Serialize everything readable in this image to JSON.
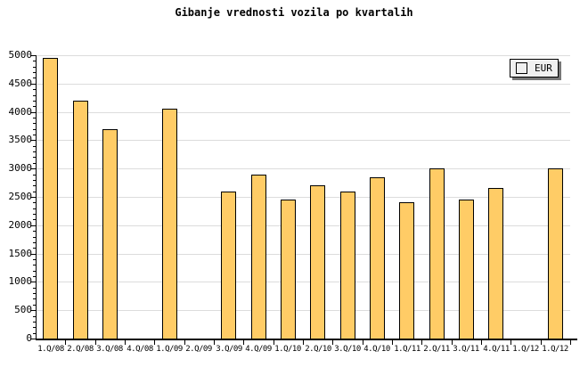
{
  "title": "Gibanje vrednosti vozila po kvartalih",
  "legend": {
    "label": "EUR"
  },
  "colors": {
    "bar_fill": "#FFCC66",
    "bar_border": "#000000",
    "gridline": "#DCDCDC",
    "axis": "#000000",
    "legend_bg": "#F0F0F0",
    "legend_shadow": "#777777",
    "background": "#FFFFFF",
    "text": "#000000"
  },
  "chart_data": {
    "type": "bar",
    "title": "Gibanje vrednosti vozila po kvartalih",
    "categories": [
      "1.Q/08",
      "2.Q/08",
      "3.Q/08",
      "4.Q/08",
      "1.Q/09",
      "2.Q/09",
      "3.Q/09",
      "4.Q/09",
      "1.Q/10",
      "2.Q/10",
      "3.Q/10",
      "4.Q/10",
      "1.Q/11",
      "2.Q/11",
      "3.Q/11",
      "4.Q/11",
      "1.Q/12",
      "1.Q/12"
    ],
    "series": [
      {
        "name": "EUR",
        "values": [
          4950,
          4200,
          3700,
          0,
          4050,
          0,
          2600,
          2900,
          2450,
          2700,
          2600,
          2850,
          2400,
          3000,
          2450,
          2650,
          0,
          3000
        ]
      }
    ],
    "xlabel": "",
    "ylabel": "",
    "ylim": [
      0,
      5000
    ],
    "ytick_step": 500,
    "y_minor_tick_step": 100,
    "yticks": [
      0,
      500,
      1000,
      1500,
      2000,
      2500,
      3000,
      3500,
      4000,
      4500,
      5000
    ],
    "grid": "horizontal",
    "legend_position": "top-right",
    "missing_value_slots": [
      "4.Q/08",
      "2.Q/09",
      "1.Q/12 (first)"
    ]
  }
}
